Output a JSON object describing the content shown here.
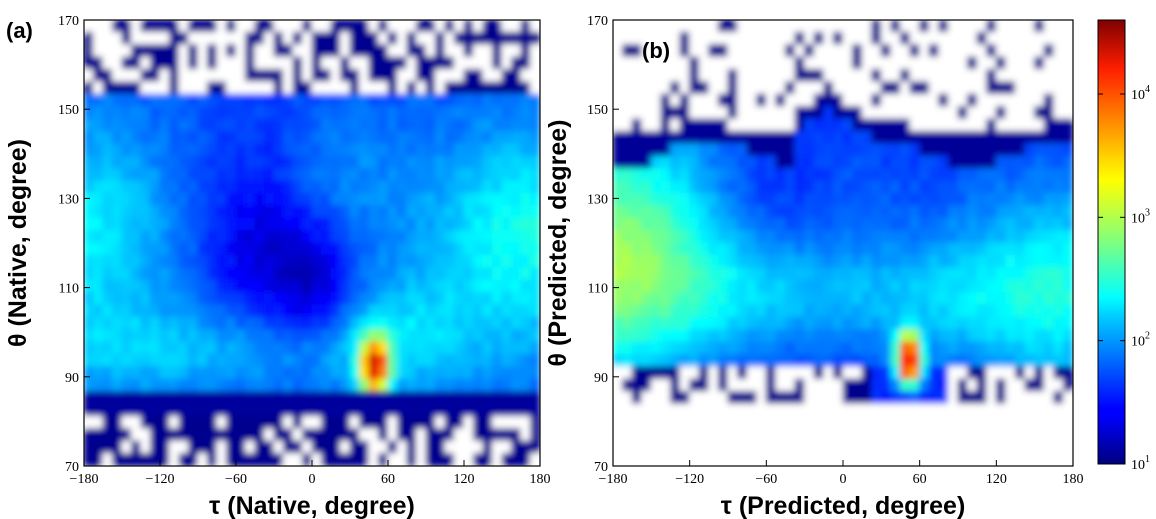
{
  "colors": {
    "colormap": "jet",
    "empty": "#ffffff",
    "frame": "#000000"
  },
  "chart_data": [
    {
      "type": "heatmap",
      "panel_label": "(a)",
      "xlabel": "τ (Native, degree)",
      "ylabel": "θ (Native, degree)",
      "xlim": [
        -180,
        180
      ],
      "ylim": [
        70,
        170
      ],
      "xticks": [
        -180,
        -120,
        -60,
        0,
        60,
        120,
        180
      ],
      "yticks": [
        70,
        90,
        110,
        130,
        150,
        170
      ],
      "xtick_labels": [
        "−180",
        "−120",
        "−60",
        "0",
        "60",
        "120",
        "180"
      ],
      "ytick_labels": [
        "70",
        "90",
        "110",
        "130",
        "150",
        "170"
      ],
      "color_scale": "log",
      "notes": "Approximate log-count density bands read from the heatmap",
      "hotspots": [
        {
          "tau": 50,
          "theta": 92,
          "log_count": 4.1
        }
      ]
    },
    {
      "type": "heatmap",
      "panel_label": "(b)",
      "xlabel": "τ (Predicted, degree)",
      "ylabel": "θ (Predicted, degree)",
      "xlim": [
        -180,
        180
      ],
      "ylim": [
        70,
        170
      ],
      "xticks": [
        -180,
        -120,
        -60,
        0,
        60,
        120,
        180
      ],
      "yticks": [
        70,
        90,
        110,
        130,
        150,
        170
      ],
      "xtick_labels": [
        "−180",
        "−120",
        "−60",
        "0",
        "60",
        "120",
        "180"
      ],
      "ytick_labels": [
        "70",
        "90",
        "110",
        "130",
        "150",
        "170"
      ],
      "color_scale": "log",
      "hotspots": [
        {
          "tau": -160,
          "theta": 120,
          "log_count": 3.7
        },
        {
          "tau": 52,
          "theta": 94,
          "log_count": 4.2
        }
      ]
    }
  ],
  "colorbar": {
    "scale": "log",
    "min_exp": 1,
    "max_exp": 4.6,
    "ticks": [
      {
        "base": "10",
        "exp": "1",
        "value": 1
      },
      {
        "base": "10",
        "exp": "2",
        "value": 2
      },
      {
        "base": "10",
        "exp": "3",
        "value": 3
      },
      {
        "base": "10",
        "exp": "4",
        "value": 4
      }
    ]
  }
}
